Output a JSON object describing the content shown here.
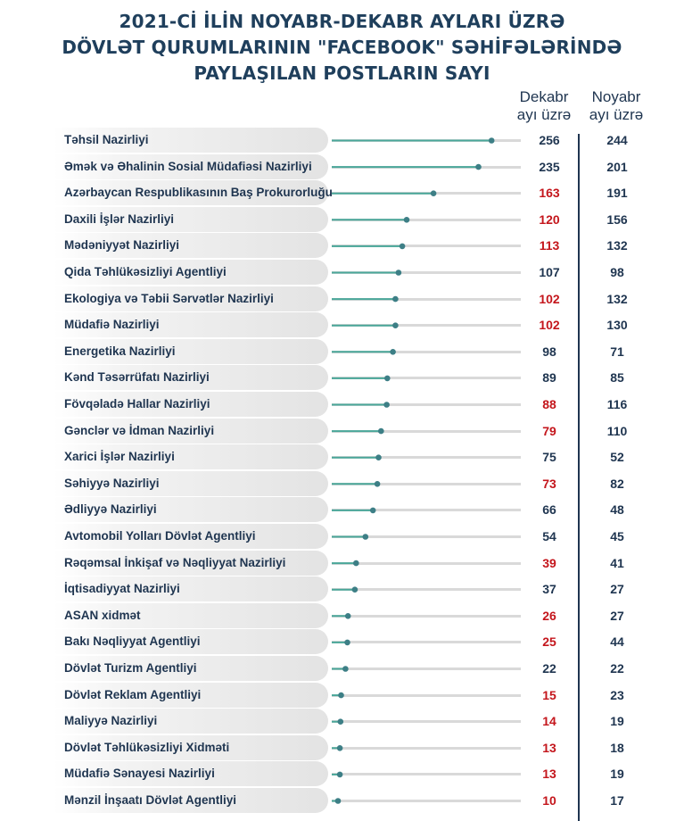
{
  "title_lines": [
    "2021-Cİ İLİN NOYABR-DEKABR AYLARI ÜZRƏ",
    "DÖVLƏT QURUMLARININ \"FACEBOOK\" SƏHİFƏLƏRİNDƏ",
    "PAYLAŞILAN POSTLARIN SAYI"
  ],
  "columns": {
    "december": [
      "Dekabr",
      "ayı üzrə"
    ],
    "november": [
      "Noyabr",
      "ayı üzrə"
    ]
  },
  "colors": {
    "line": "#4aa89a",
    "dot": "#3d7f86",
    "decrease": "#c4161c",
    "normal": "#1f3550"
  },
  "chart_data": {
    "type": "bar",
    "orientation": "horizontal lollipop",
    "categories": [
      "Təhsil Nazirliyi",
      "Əmək və Əhalinin Sosial Müdafiəsi Nazirliyi",
      "Azərbaycan Respublikasının Baş Prokurorluğu",
      "Daxili İşlər Nazirliyi",
      "Mədəniyyət Nazirliyi",
      "Qida Təhlükəsizliyi Agentliyi",
      "Ekologiya və Təbii Sərvətlər Nazirliyi",
      "Müdafiə Nazirliyi",
      "Energetika Nazirliyi",
      "Kənd Təsərrüfatı Nazirliyi",
      "Fövqəladə Hallar Nazirliyi",
      "Gənclər və İdman Nazirliyi",
      "Xarici İşlər Nazirliyi",
      "Səhiyyə Nazirliyi",
      "Ədliyyə Nazirliyi",
      "Avtomobil Yolları Dövlət Agentliyi",
      "Rəqəmsal İnkişaf və Nəqliyyat Nazirliyi",
      "İqtisadiyyat Nazirliyi",
      "ASAN xidmət",
      "Bakı Nəqliyyat Agentliyi",
      "Dövlət Turizm Agentliyi",
      "Dövlət Reklam Agentliyi",
      " Maliyyə Nazirliyi",
      "Dövlət Təhlükəsizliyi Xidməti",
      "Müdafiə Sənayesi Nazirliyi",
      "Mənzil İnşaatı Dövlət Agentliyi"
    ],
    "series": [
      {
        "name": "Dekabr ayı üzrə",
        "values": [
          256,
          235,
          163,
          120,
          113,
          107,
          102,
          102,
          98,
          89,
          88,
          79,
          75,
          73,
          66,
          54,
          39,
          37,
          26,
          25,
          22,
          15,
          14,
          13,
          13,
          10
        ]
      },
      {
        "name": "Noyabr ayı üzrə",
        "values": [
          244,
          201,
          191,
          156,
          132,
          98,
          132,
          130,
          71,
          85,
          116,
          110,
          52,
          82,
          48,
          45,
          41,
          27,
          27,
          44,
          22,
          23,
          19,
          18,
          19,
          17
        ]
      }
    ],
    "xlim": [
      0,
      300
    ]
  }
}
